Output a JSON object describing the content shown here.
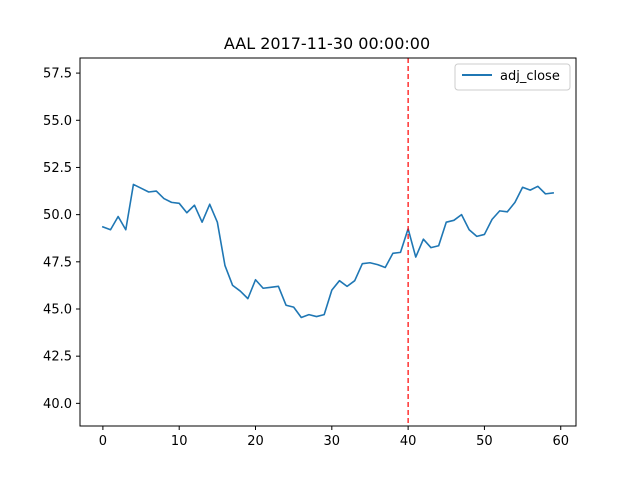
{
  "chart_data": {
    "type": "line",
    "title": "AAL 2017-11-30 00:00:00",
    "xlabel": "",
    "ylabel": "",
    "xlim": [
      -3,
      62
    ],
    "ylim": [
      38.8,
      58.3
    ],
    "x_ticks": [
      0,
      10,
      20,
      30,
      40,
      50,
      60
    ],
    "y_ticks": [
      40.0,
      42.5,
      45.0,
      47.5,
      50.0,
      52.5,
      55.0,
      57.5
    ],
    "y_tick_labels": [
      "40.0",
      "42.5",
      "45.0",
      "47.5",
      "50.0",
      "52.5",
      "55.0",
      "57.5"
    ],
    "grid": false,
    "legend_position": "top-right",
    "series": [
      {
        "name": "adj_close",
        "color": "#1f77b4",
        "x": [
          0,
          1,
          2,
          3,
          4,
          5,
          6,
          7,
          8,
          9,
          10,
          11,
          12,
          13,
          14,
          15,
          16,
          17,
          18,
          19,
          20,
          21,
          22,
          23,
          24,
          25,
          26,
          27,
          28,
          29,
          30,
          31,
          32,
          33,
          34,
          35,
          36,
          37,
          38,
          39,
          40,
          41,
          42,
          43,
          44,
          45,
          46,
          47,
          48,
          49,
          50,
          51,
          52,
          53,
          54,
          55,
          56,
          57,
          58,
          59
        ],
        "values": [
          49.35,
          49.2,
          49.9,
          49.2,
          51.6,
          51.4,
          51.2,
          51.25,
          50.85,
          50.65,
          50.6,
          50.1,
          50.5,
          49.6,
          50.55,
          49.6,
          47.3,
          46.25,
          45.95,
          45.55,
          46.55,
          46.1,
          46.15,
          46.2,
          45.2,
          45.1,
          44.55,
          44.7,
          44.6,
          44.7,
          46.0,
          46.5,
          46.2,
          46.5,
          47.4,
          47.45,
          47.35,
          47.2,
          47.95,
          48.0,
          49.25,
          47.75,
          48.7,
          48.25,
          48.35,
          49.6,
          49.7,
          50.0,
          49.2,
          48.85,
          48.95,
          49.75,
          50.2,
          50.15,
          50.65,
          51.45,
          51.3,
          51.5,
          51.1,
          51.15
        ]
      }
    ],
    "annotations": [
      {
        "type": "vline",
        "x": 40,
        "color": "#ff0000",
        "style": "dashed"
      }
    ]
  }
}
